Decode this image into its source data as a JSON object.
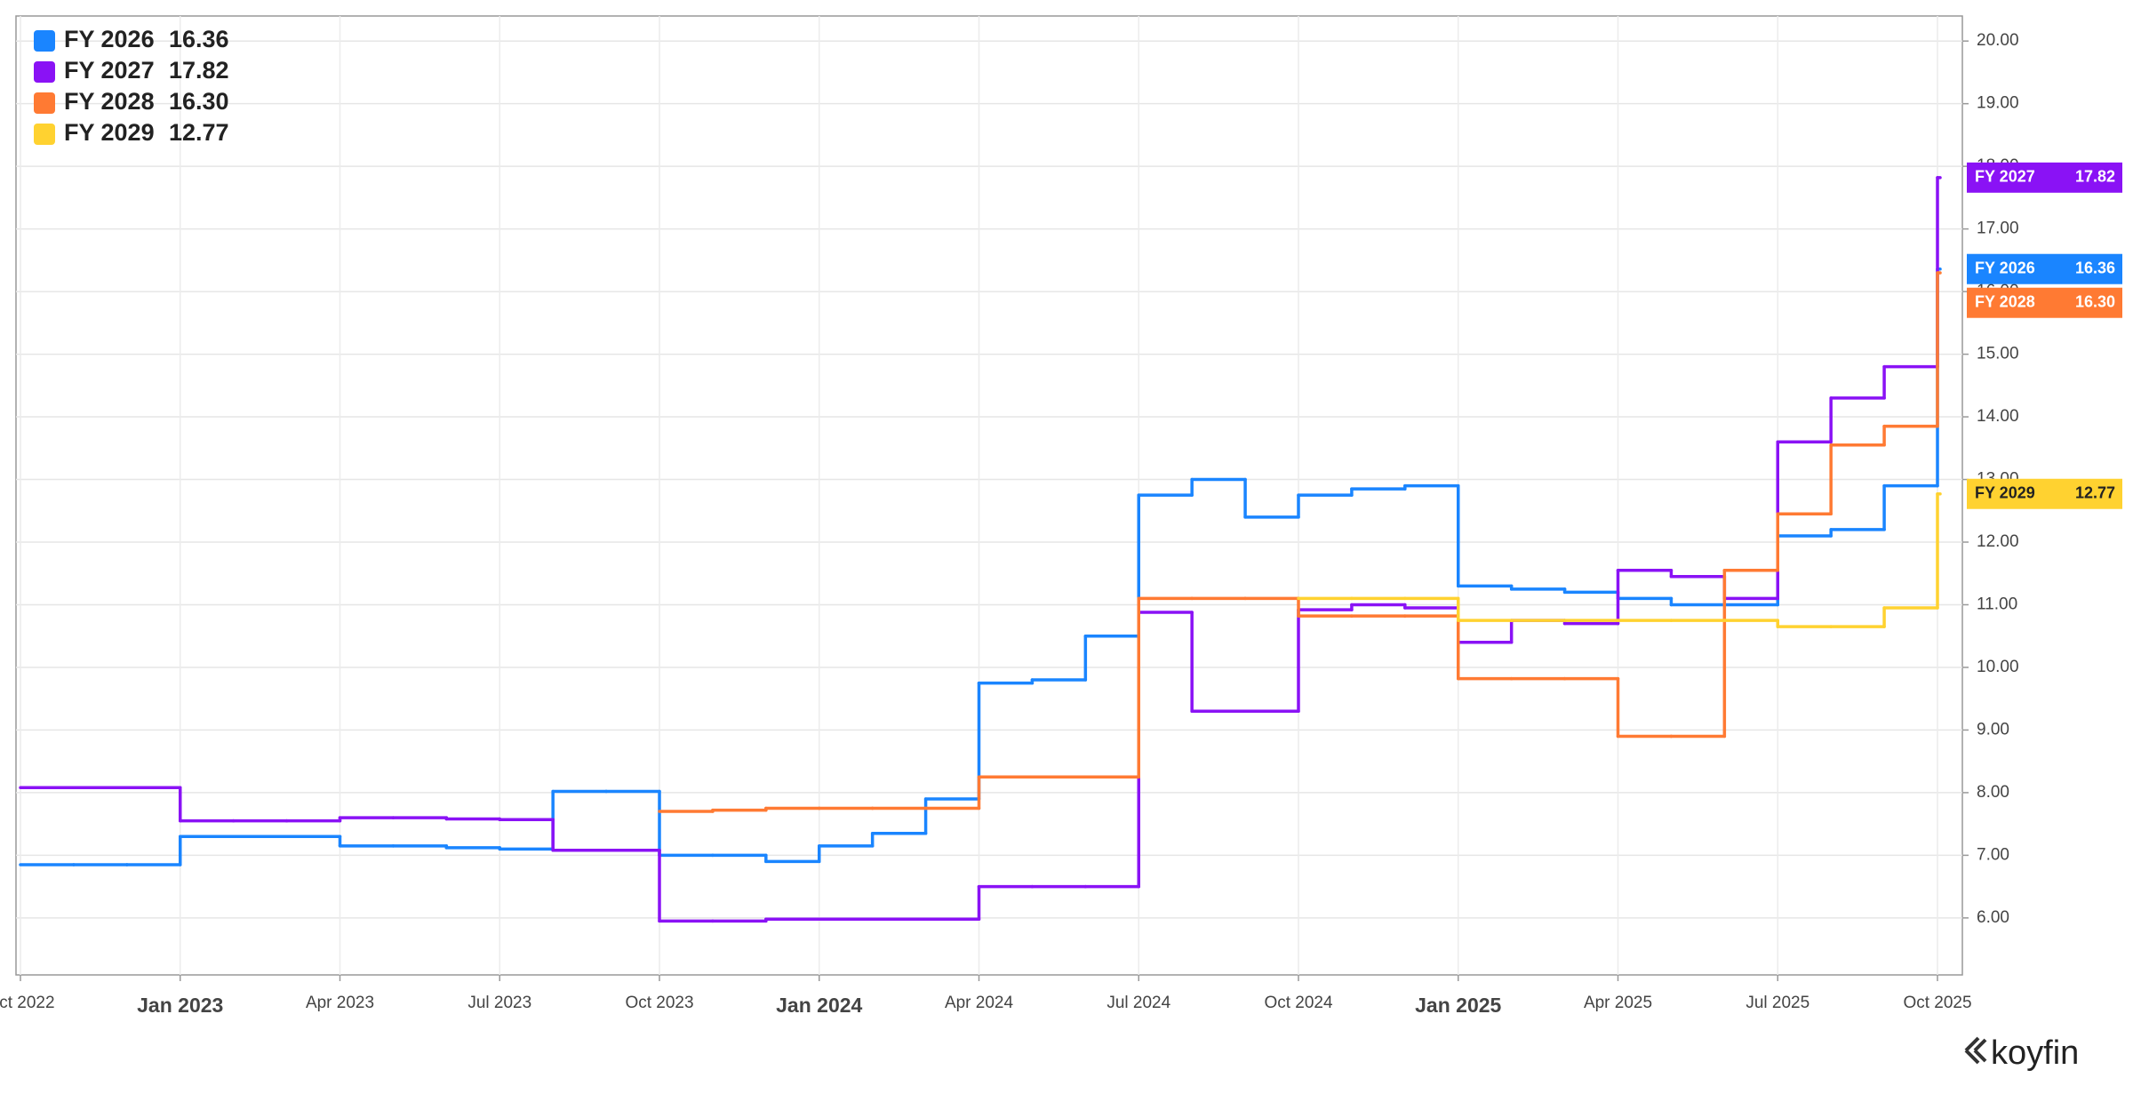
{
  "chart_data": {
    "type": "line",
    "step": true,
    "grid": true,
    "legend": "top-left",
    "watermark": "koyfin",
    "x": [
      "2022-10",
      "2022-11",
      "2022-12",
      "2023-01",
      "2023-02",
      "2023-03",
      "2023-04",
      "2023-05",
      "2023-06",
      "2023-07",
      "2023-08",
      "2023-09",
      "2023-10",
      "2023-11",
      "2023-12",
      "2024-01",
      "2024-02",
      "2024-03",
      "2024-04",
      "2024-05",
      "2024-06",
      "2024-07",
      "2024-08",
      "2024-09",
      "2024-10",
      "2024-11",
      "2024-12",
      "2025-01",
      "2025-02",
      "2025-03",
      "2025-04",
      "2025-05",
      "2025-06",
      "2025-07",
      "2025-08",
      "2025-09",
      "2025-10"
    ],
    "xlim": [
      "2022-10",
      "2025-10"
    ],
    "xticks": [
      {
        "value": "2022-10",
        "label": "Oct 2022"
      },
      {
        "value": "2023-01",
        "label": "Jan 2023"
      },
      {
        "value": "2023-04",
        "label": "Apr 2023"
      },
      {
        "value": "2023-07",
        "label": "Jul 2023"
      },
      {
        "value": "2023-10",
        "label": "Oct 2023"
      },
      {
        "value": "2024-01",
        "label": "Jan 2024"
      },
      {
        "value": "2024-04",
        "label": "Apr 2024"
      },
      {
        "value": "2024-07",
        "label": "Jul 2024"
      },
      {
        "value": "2024-10",
        "label": "Oct 2024"
      },
      {
        "value": "2025-01",
        "label": "Jan 2025"
      },
      {
        "value": "2025-04",
        "label": "Apr 2025"
      },
      {
        "value": "2025-07",
        "label": "Jul 2025"
      },
      {
        "value": "2025-10",
        "label": "Oct 2025"
      }
    ],
    "ylim": [
      5.09,
      20.4
    ],
    "yticks": [
      {
        "value": 6,
        "label": "6.00"
      },
      {
        "value": 7,
        "label": "7.00"
      },
      {
        "value": 8,
        "label": "8.00"
      },
      {
        "value": 9,
        "label": "9.00"
      },
      {
        "value": 10,
        "label": "10.00"
      },
      {
        "value": 11,
        "label": "11.00"
      },
      {
        "value": 12,
        "label": "12.00"
      },
      {
        "value": 13,
        "label": "13.00"
      },
      {
        "value": 14,
        "label": "14.00"
      },
      {
        "value": 15,
        "label": "15.00"
      },
      {
        "value": 16,
        "label": "16.00"
      },
      {
        "value": 17,
        "label": "17.00"
      },
      {
        "value": 18,
        "label": "18.00"
      },
      {
        "value": 19,
        "label": "19.00"
      },
      {
        "value": 20,
        "label": "20.00"
      }
    ],
    "series": [
      {
        "name": "FY 2026",
        "color": "#1a85ff",
        "values": [
          6.85,
          6.85,
          6.85,
          7.3,
          7.3,
          7.3,
          7.15,
          7.15,
          7.12,
          7.1,
          8.02,
          8.02,
          7.0,
          7.0,
          6.9,
          7.15,
          7.35,
          7.9,
          9.75,
          9.8,
          10.5,
          12.75,
          13.0,
          12.4,
          12.75,
          12.85,
          12.9,
          11.3,
          11.25,
          11.2,
          11.1,
          11.0,
          11.0,
          12.1,
          12.2,
          12.9,
          16.36
        ]
      },
      {
        "name": "FY 2027",
        "color": "#8a12f5",
        "values": [
          8.08,
          8.08,
          8.08,
          7.55,
          7.55,
          7.55,
          7.6,
          7.6,
          7.58,
          7.57,
          7.08,
          7.08,
          5.95,
          5.95,
          5.98,
          5.98,
          5.98,
          5.98,
          6.5,
          6.5,
          6.5,
          10.88,
          9.3,
          9.3,
          10.92,
          11.0,
          10.95,
          10.4,
          10.75,
          10.7,
          11.55,
          11.45,
          11.1,
          13.6,
          14.3,
          14.8,
          17.82
        ]
      },
      {
        "name": "FY 2028",
        "color": "#ff7a33",
        "values": [
          null,
          null,
          null,
          null,
          null,
          null,
          null,
          null,
          null,
          null,
          null,
          null,
          7.7,
          7.72,
          7.75,
          7.75,
          7.75,
          7.75,
          8.25,
          8.25,
          8.25,
          11.1,
          11.1,
          11.1,
          10.82,
          10.82,
          10.82,
          9.82,
          9.82,
          9.82,
          8.9,
          8.9,
          11.55,
          12.45,
          13.55,
          13.85,
          16.3
        ],
        "value_labels": [
          null,
          null,
          null,
          null,
          null,
          null,
          null,
          null,
          null,
          null,
          null,
          null,
          null,
          null,
          null,
          null,
          null,
          null,
          null,
          null,
          null,
          null,
          null,
          null,
          null,
          null,
          null,
          null,
          null,
          null,
          null,
          null,
          null,
          null,
          null,
          null,
          "16.30"
        ]
      },
      {
        "name": "FY 2029",
        "color": "#ffd230",
        "values": [
          null,
          null,
          null,
          null,
          null,
          null,
          null,
          null,
          null,
          null,
          null,
          null,
          null,
          null,
          null,
          null,
          null,
          null,
          null,
          null,
          null,
          null,
          null,
          null,
          11.1,
          11.1,
          11.1,
          10.75,
          10.75,
          10.75,
          10.75,
          10.75,
          10.75,
          10.65,
          10.65,
          10.95,
          12.77
        ]
      }
    ]
  }
}
